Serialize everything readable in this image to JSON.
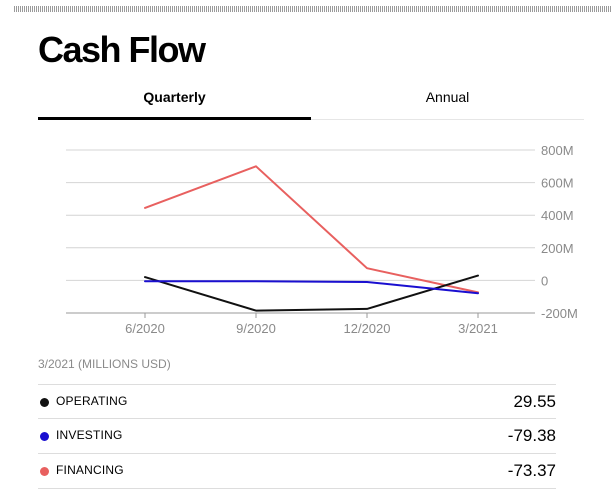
{
  "page": {
    "title": "Cash Flow"
  },
  "tabs": [
    {
      "label": "Quarterly",
      "active": true
    },
    {
      "label": "Annual",
      "active": false
    }
  ],
  "chart_data": {
    "type": "line",
    "x": [
      "6/2020",
      "9/2020",
      "12/2020",
      "3/2021"
    ],
    "series": [
      {
        "name": "OPERATING",
        "color": "#111111",
        "values": [
          20,
          -185,
          -175,
          29.55
        ]
      },
      {
        "name": "INVESTING",
        "color": "#1a0fd0",
        "values": [
          -5,
          -5,
          -10,
          -79.38
        ]
      },
      {
        "name": "FINANCING",
        "color": "#e8605f",
        "values": [
          445,
          700,
          75,
          -73.37
        ]
      }
    ],
    "y_ticks": [
      800,
      600,
      400,
      200,
      0,
      -200
    ],
    "y_tick_labels": [
      "800M",
      "600M",
      "400M",
      "200M",
      "0",
      "-200M"
    ],
    "ylim": [
      -200,
      800
    ],
    "y_axis_position": "right",
    "grid": true
  },
  "summary": {
    "caption": "3/2021 (MILLIONS USD)",
    "rows": [
      {
        "label": "OPERATING",
        "value": "29.55",
        "color": "#111111"
      },
      {
        "label": "INVESTING",
        "value": "-79.38",
        "color": "#1a0fd0"
      },
      {
        "label": "FINANCING",
        "value": "-73.37",
        "color": "#e8605f"
      }
    ]
  }
}
